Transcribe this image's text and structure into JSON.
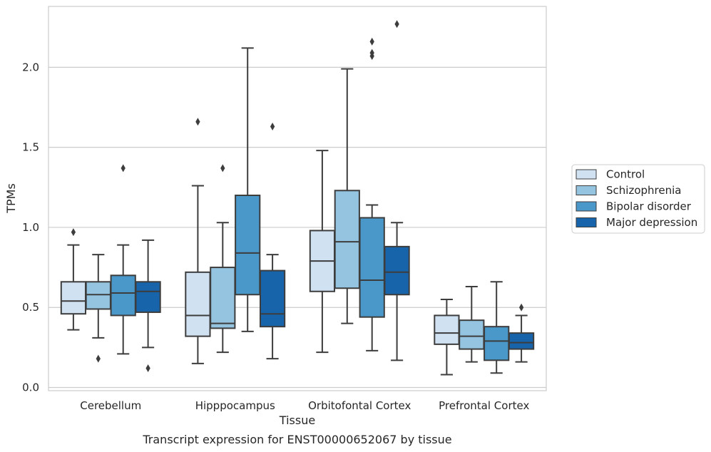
{
  "chart_data": {
    "type": "box",
    "title": "",
    "caption": "Transcript expression for ENST00000652067 by tissue",
    "xlabel": "Tissue",
    "ylabel": "TPMs",
    "ylim": [
      -0.02,
      2.38
    ],
    "yticks": [
      0.0,
      0.5,
      1.0,
      1.5,
      2.0
    ],
    "ytick_labels": [
      "0.0",
      "0.5",
      "1.0",
      "1.5",
      "2.0"
    ],
    "grid": "horizontal",
    "legend_placement": "right",
    "categories": [
      "Cerebellum",
      "Hipppocampus",
      "Orbitofontal Cortex",
      "Prefrontal Cortex"
    ],
    "series": [
      {
        "name": "Control",
        "color": "#d0e1f2",
        "boxes": [
          {
            "whislo": 0.36,
            "q1": 0.46,
            "med": 0.54,
            "q3": 0.66,
            "whishi": 0.89,
            "fliers": [
              0.97
            ]
          },
          {
            "whislo": 0.15,
            "q1": 0.32,
            "med": 0.45,
            "q3": 0.72,
            "whishi": 1.26,
            "fliers": [
              1.66
            ]
          },
          {
            "whislo": 0.22,
            "q1": 0.6,
            "med": 0.79,
            "q3": 0.98,
            "whishi": 1.48,
            "fliers": []
          },
          {
            "whislo": 0.08,
            "q1": 0.27,
            "med": 0.34,
            "q3": 0.45,
            "whishi": 0.55,
            "fliers": []
          }
        ]
      },
      {
        "name": "Schizophrenia",
        "color": "#94c4df",
        "boxes": [
          {
            "whislo": 0.31,
            "q1": 0.49,
            "med": 0.58,
            "q3": 0.66,
            "whishi": 0.83,
            "fliers": [
              0.18
            ]
          },
          {
            "whislo": 0.22,
            "q1": 0.37,
            "med": 0.4,
            "q3": 0.75,
            "whishi": 1.03,
            "fliers": [
              1.37
            ]
          },
          {
            "whislo": 0.4,
            "q1": 0.62,
            "med": 0.91,
            "q3": 1.23,
            "whishi": 1.99,
            "fliers": []
          },
          {
            "whislo": 0.16,
            "q1": 0.24,
            "med": 0.32,
            "q3": 0.42,
            "whishi": 0.63,
            "fliers": []
          }
        ]
      },
      {
        "name": "Bipolar disorder",
        "color": "#4a98c9",
        "boxes": [
          {
            "whislo": 0.21,
            "q1": 0.45,
            "med": 0.59,
            "q3": 0.7,
            "whishi": 0.89,
            "fliers": [
              1.37
            ]
          },
          {
            "whislo": 0.35,
            "q1": 0.58,
            "med": 0.84,
            "q3": 1.2,
            "whishi": 2.12,
            "fliers": []
          },
          {
            "whislo": 0.23,
            "q1": 0.44,
            "med": 0.67,
            "q3": 1.06,
            "whishi": 1.14,
            "fliers": [
              2.07,
              2.09,
              2.16
            ]
          },
          {
            "whislo": 0.09,
            "q1": 0.17,
            "med": 0.29,
            "q3": 0.38,
            "whishi": 0.66,
            "fliers": []
          }
        ]
      },
      {
        "name": "Major depression",
        "color": "#1764ab",
        "boxes": [
          {
            "whislo": 0.25,
            "q1": 0.47,
            "med": 0.6,
            "q3": 0.66,
            "whishi": 0.92,
            "fliers": [
              0.12
            ]
          },
          {
            "whislo": 0.18,
            "q1": 0.38,
            "med": 0.46,
            "q3": 0.73,
            "whishi": 0.83,
            "fliers": [
              1.63
            ]
          },
          {
            "whislo": 0.17,
            "q1": 0.58,
            "med": 0.72,
            "q3": 0.88,
            "whishi": 1.03,
            "fliers": [
              2.27
            ]
          },
          {
            "whislo": 0.16,
            "q1": 0.24,
            "med": 0.28,
            "q3": 0.34,
            "whishi": 0.45,
            "fliers": [
              0.5
            ]
          }
        ]
      }
    ]
  }
}
